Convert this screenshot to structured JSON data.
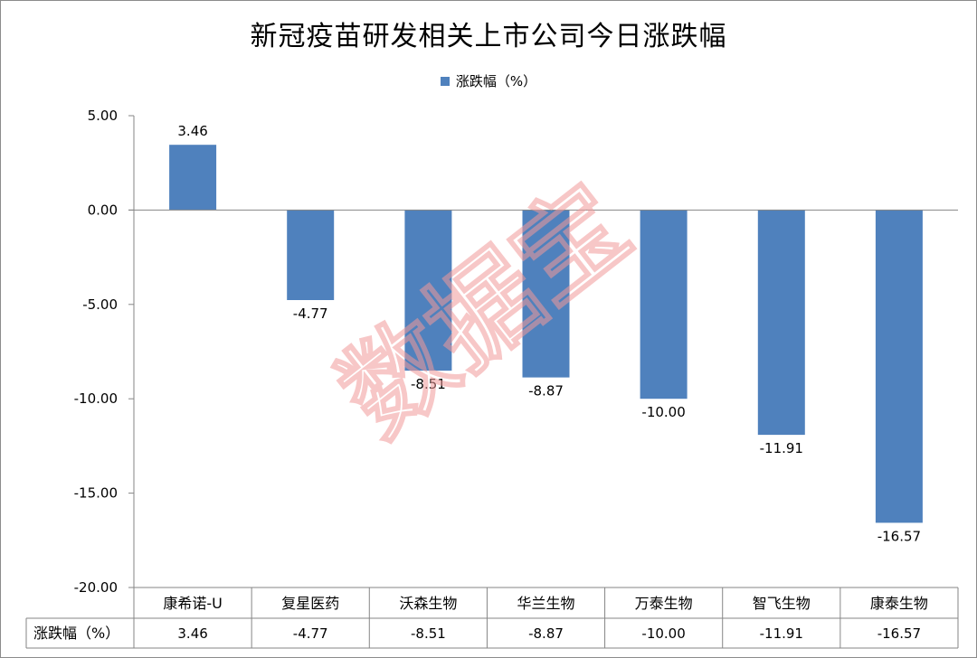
{
  "title": "新冠疫苗研发相关上市公司今日涨跌幅",
  "legend": {
    "label": "涨跌幅（%）",
    "position": "top-center"
  },
  "watermark": "数据宝",
  "colors": {
    "bar": "#4f81bd",
    "axis": "#868686",
    "watermark": "#f29a9a"
  },
  "chart_data": {
    "type": "bar",
    "title": "新冠疫苗研发相关上市公司今日涨跌幅",
    "categories": [
      "康希诺-U",
      "复星医药",
      "沃森生物",
      "华兰生物",
      "万泰生物",
      "智飞生物",
      "康泰生物"
    ],
    "series": [
      {
        "name": "涨跌幅（%）",
        "values": [
          3.46,
          -4.77,
          -8.51,
          -8.87,
          -10.0,
          -11.91,
          -16.57
        ],
        "value_labels": [
          "3.46",
          "-4.77",
          "-8.51",
          "-8.87",
          "-10.00",
          "-11.91",
          "-16.57"
        ]
      }
    ],
    "ylim": [
      -20,
      5
    ],
    "yticks": [
      5,
      0,
      -5,
      -10,
      -15,
      -20
    ],
    "ytick_labels": [
      "5.00",
      "0.00",
      "-5.00",
      "-10.00",
      "-15.00",
      "-20.00"
    ],
    "grid": false,
    "data_table": true,
    "legend": "top-center"
  }
}
